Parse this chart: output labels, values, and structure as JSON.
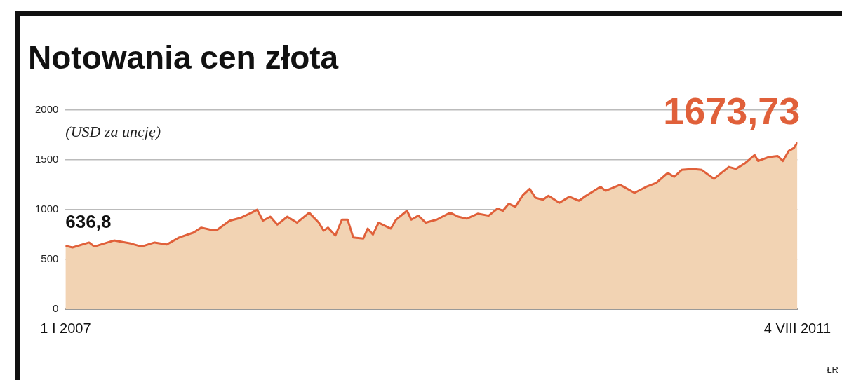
{
  "chart_data": {
    "type": "area",
    "title": "Notowania cen złota",
    "ylabel": "(USD za uncję)",
    "x": [
      "2007-01-01",
      "2007-01-17",
      "2007-02-24",
      "2007-03-08",
      "2007-04-22",
      "2007-05-30",
      "2007-06-24",
      "2007-07-24",
      "2007-08-21",
      "2007-09-18",
      "2007-10-21",
      "2007-11-08",
      "2007-11-28",
      "2007-12-15",
      "2008-01-12",
      "2008-02-07",
      "2008-03-02",
      "2008-03-15",
      "2008-03-28",
      "2008-04-14",
      "2008-04-30",
      "2008-05-23",
      "2008-06-14",
      "2008-07-12",
      "2008-08-03",
      "2008-08-14",
      "2008-08-24",
      "2008-09-10",
      "2008-09-25",
      "2008-10-08",
      "2008-10-21",
      "2008-11-13",
      "2008-11-23",
      "2008-12-05",
      "2008-12-18",
      "2009-01-15",
      "2009-01-27",
      "2009-02-21",
      "2009-03-03",
      "2009-03-19",
      "2009-04-05",
      "2009-04-30",
      "2009-05-31",
      "2009-06-18",
      "2009-07-08",
      "2009-08-02",
      "2009-08-27",
      "2009-09-16",
      "2009-09-29",
      "2009-10-12",
      "2009-10-27",
      "2009-11-14",
      "2009-11-29",
      "2009-12-12",
      "2009-12-29",
      "2010-01-11",
      "2010-02-05",
      "2010-02-28",
      "2010-03-22",
      "2010-04-07",
      "2010-05-10",
      "2010-05-22",
      "2010-06-24",
      "2010-07-27",
      "2010-08-23",
      "2010-09-15",
      "2010-10-11",
      "2010-10-26",
      "2010-11-12",
      "2010-12-07",
      "2010-12-28",
      "2011-01-25",
      "2011-02-28",
      "2011-03-16",
      "2011-04-07",
      "2011-04-28",
      "2011-05-06",
      "2011-05-31",
      "2011-06-20",
      "2011-07-02",
      "2011-07-15",
      "2011-07-27",
      "2011-08-04"
    ],
    "series": [
      {
        "color": "#e0603a",
        "values": [
          636.8,
          620,
          670,
          630,
          690,
          660,
          630,
          670,
          650,
          720,
          770,
          820,
          800,
          800,
          890,
          920,
          970,
          1000,
          890,
          930,
          850,
          930,
          870,
          970,
          870,
          790,
          820,
          740,
          900,
          900,
          720,
          710,
          810,
          750,
          870,
          810,
          900,
          990,
          900,
          940,
          870,
          900,
          970,
          930,
          910,
          960,
          940,
          1010,
          990,
          1060,
          1030,
          1150,
          1210,
          1120,
          1100,
          1140,
          1070,
          1130,
          1090,
          1140,
          1230,
          1190,
          1250,
          1170,
          1230,
          1270,
          1370,
          1330,
          1400,
          1410,
          1400,
          1310,
          1430,
          1410,
          1470,
          1550,
          1490,
          1530,
          1540,
          1490,
          1590,
          1620,
          1673.73
        ]
      }
    ],
    "xlim": [
      "2007-01-01",
      "2011-08-04"
    ],
    "xticks": [
      {
        "value": "2007-01-01",
        "label": "1 I 2007"
      },
      {
        "value": "2011-08-04",
        "label": "4 VIII 2011"
      }
    ],
    "ylim": [
      0,
      2000
    ],
    "yticks": [
      0,
      500,
      1000,
      1500,
      2000
    ],
    "grid": "y",
    "legend": false,
    "marker": "none",
    "line_style": "solid",
    "annotations": [
      {
        "text": "636,8",
        "x": "2007-01-01",
        "y": 636.8
      },
      {
        "text": "1673,73",
        "x": "2011-08-04",
        "y": 1673.73
      },
      "ŁR"
    ]
  }
}
